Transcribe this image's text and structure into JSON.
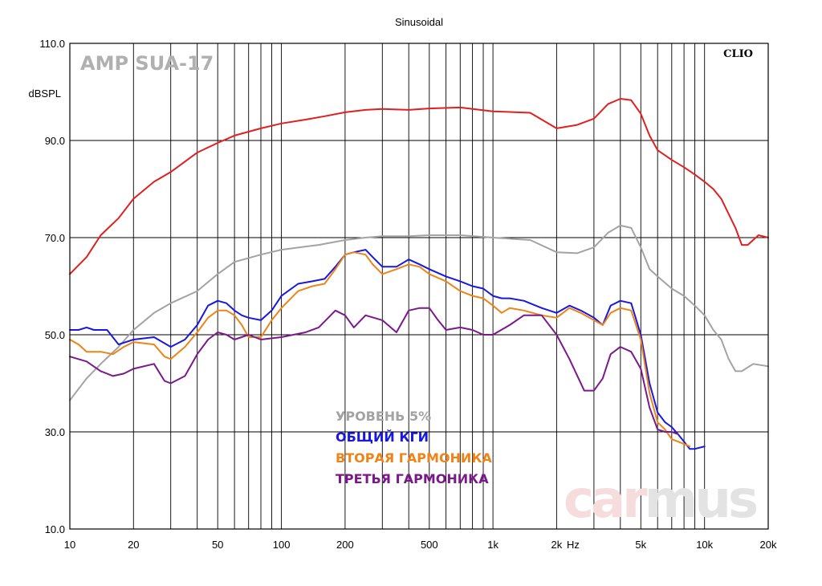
{
  "chart_data": {
    "type": "line",
    "title": "Sinusoidal",
    "ylabel": "dBSPL",
    "xlabel": "Hz",
    "x_scale": "log",
    "xlim": [
      10,
      20000
    ],
    "ylim": [
      10,
      110
    ],
    "y_ticks": [
      "110.0",
      "90.0",
      "70.0",
      "50.0",
      "30.0",
      "10.0"
    ],
    "x_ticks": [
      {
        "value": 10,
        "label": "10"
      },
      {
        "value": 20,
        "label": "20"
      },
      {
        "value": 50,
        "label": "50"
      },
      {
        "value": 100,
        "label": "100"
      },
      {
        "value": 200,
        "label": "200"
      },
      {
        "value": 500,
        "label": "500"
      },
      {
        "value": 1000,
        "label": "1k"
      },
      {
        "value": 2000,
        "label": "2k"
      },
      {
        "value": 5000,
        "label": "5k"
      },
      {
        "value": 10000,
        "label": "10k"
      },
      {
        "value": 20000,
        "label": "20k"
      }
    ],
    "grid": true,
    "annotations": {
      "device": "AMP SUA-17",
      "brand": "CLIO",
      "watermark_a": "car",
      "watermark_b": "mus"
    },
    "legend_position": "center-bottom",
    "series": [
      {
        "name": "",
        "color": "#e02020",
        "points": [
          [
            10,
            62.5
          ],
          [
            12,
            66
          ],
          [
            14,
            70.5
          ],
          [
            17,
            74
          ],
          [
            20,
            78
          ],
          [
            25,
            81.5
          ],
          [
            30,
            83.5
          ],
          [
            40,
            87.5
          ],
          [
            50,
            89.5
          ],
          [
            60,
            91
          ],
          [
            80,
            92.5
          ],
          [
            100,
            93.5
          ],
          [
            130,
            94.3
          ],
          [
            160,
            95
          ],
          [
            200,
            95.8
          ],
          [
            250,
            96.3
          ],
          [
            300,
            96.5
          ],
          [
            400,
            96.3
          ],
          [
            500,
            96.6
          ],
          [
            700,
            96.8
          ],
          [
            1000,
            96
          ],
          [
            1500,
            95.7
          ],
          [
            2000,
            92.5
          ],
          [
            2500,
            93.2
          ],
          [
            3000,
            94.5
          ],
          [
            3500,
            97.5
          ],
          [
            4000,
            98.6
          ],
          [
            4500,
            98.3
          ],
          [
            5000,
            95.5
          ],
          [
            5500,
            91
          ],
          [
            6000,
            88
          ],
          [
            7000,
            86
          ],
          [
            8000,
            84.5
          ],
          [
            9000,
            83
          ],
          [
            10000,
            81.5
          ],
          [
            11000,
            80
          ],
          [
            12000,
            78
          ],
          [
            14000,
            72
          ],
          [
            15000,
            68.5
          ],
          [
            16000,
            68.5
          ],
          [
            18000,
            70.5
          ],
          [
            20000,
            70
          ]
        ]
      },
      {
        "name": "УРОВЕНЬ 5%",
        "color": "#a3a3a3",
        "points": [
          [
            10,
            36.5
          ],
          [
            12,
            41
          ],
          [
            14,
            44
          ],
          [
            17,
            47.5
          ],
          [
            20,
            51
          ],
          [
            25,
            54.5
          ],
          [
            30,
            56.5
          ],
          [
            40,
            59
          ],
          [
            50,
            62.5
          ],
          [
            60,
            65
          ],
          [
            80,
            66.5
          ],
          [
            100,
            67.5
          ],
          [
            150,
            68.5
          ],
          [
            200,
            69.5
          ],
          [
            250,
            70
          ],
          [
            300,
            70.3
          ],
          [
            400,
            70.3
          ],
          [
            500,
            70.5
          ],
          [
            700,
            70.5
          ],
          [
            1000,
            70
          ],
          [
            1500,
            69.5
          ],
          [
            2000,
            67
          ],
          [
            2500,
            66.8
          ],
          [
            3000,
            68
          ],
          [
            3500,
            71
          ],
          [
            4000,
            72.5
          ],
          [
            4500,
            72
          ],
          [
            5000,
            68
          ],
          [
            5500,
            63.5
          ],
          [
            6000,
            62
          ],
          [
            7000,
            59.5
          ],
          [
            8000,
            58
          ],
          [
            9000,
            56
          ],
          [
            10000,
            54
          ],
          [
            11000,
            51
          ],
          [
            12000,
            49
          ],
          [
            13000,
            45
          ],
          [
            14000,
            42.5
          ],
          [
            15000,
            42.5
          ],
          [
            17000,
            44
          ],
          [
            20000,
            43.5
          ]
        ]
      },
      {
        "name": "ОБЩИЙ КГИ",
        "color": "#1818e0",
        "points": [
          [
            10,
            51
          ],
          [
            11,
            51
          ],
          [
            12,
            51.5
          ],
          [
            13,
            51
          ],
          [
            15,
            51
          ],
          [
            17,
            48
          ],
          [
            20,
            49
          ],
          [
            25,
            49.5
          ],
          [
            30,
            47.5
          ],
          [
            35,
            49
          ],
          [
            40,
            52
          ],
          [
            45,
            56
          ],
          [
            50,
            57
          ],
          [
            55,
            56.5
          ],
          [
            60,
            55
          ],
          [
            65,
            54
          ],
          [
            70,
            53.5
          ],
          [
            80,
            53
          ],
          [
            90,
            55
          ],
          [
            100,
            58
          ],
          [
            120,
            60.5
          ],
          [
            140,
            61
          ],
          [
            160,
            61.5
          ],
          [
            180,
            64
          ],
          [
            200,
            66.5
          ],
          [
            220,
            67
          ],
          [
            250,
            67.5
          ],
          [
            270,
            66
          ],
          [
            300,
            64
          ],
          [
            350,
            64
          ],
          [
            400,
            65.5
          ],
          [
            450,
            64.5
          ],
          [
            500,
            63.5
          ],
          [
            600,
            62
          ],
          [
            700,
            61
          ],
          [
            800,
            60
          ],
          [
            900,
            59.5
          ],
          [
            1000,
            58
          ],
          [
            1100,
            57.5
          ],
          [
            1200,
            57.5
          ],
          [
            1400,
            57
          ],
          [
            1700,
            55.5
          ],
          [
            2000,
            54.5
          ],
          [
            2300,
            56
          ],
          [
            2600,
            55
          ],
          [
            3000,
            53.5
          ],
          [
            3300,
            52
          ],
          [
            3600,
            56
          ],
          [
            4000,
            57
          ],
          [
            4500,
            56.5
          ],
          [
            5000,
            50
          ],
          [
            5500,
            40
          ],
          [
            6000,
            34
          ],
          [
            6500,
            32
          ],
          [
            7000,
            31
          ],
          [
            7500,
            29.5
          ],
          [
            8000,
            28
          ],
          [
            8500,
            26.5
          ],
          [
            9000,
            26.5
          ],
          [
            10000,
            27
          ]
        ]
      },
      {
        "name": "ВТОРАЯ ГАРМОНИКА",
        "color": "#ee8418",
        "points": [
          [
            10,
            49
          ],
          [
            11,
            48
          ],
          [
            12,
            46.5
          ],
          [
            14,
            46.5
          ],
          [
            16,
            46
          ],
          [
            18,
            47.5
          ],
          [
            20,
            48.5
          ],
          [
            25,
            48
          ],
          [
            28,
            45.5
          ],
          [
            30,
            45
          ],
          [
            35,
            47.5
          ],
          [
            40,
            50.5
          ],
          [
            45,
            53.5
          ],
          [
            50,
            55
          ],
          [
            55,
            55
          ],
          [
            60,
            54
          ],
          [
            65,
            52
          ],
          [
            70,
            49.5
          ],
          [
            80,
            49.5
          ],
          [
            90,
            53
          ],
          [
            100,
            55.5
          ],
          [
            120,
            59
          ],
          [
            140,
            60
          ],
          [
            160,
            60.5
          ],
          [
            180,
            63.5
          ],
          [
            200,
            66.5
          ],
          [
            220,
            67
          ],
          [
            250,
            66.5
          ],
          [
            270,
            64.5
          ],
          [
            300,
            62.5
          ],
          [
            350,
            63.5
          ],
          [
            400,
            64.5
          ],
          [
            450,
            64
          ],
          [
            500,
            62.5
          ],
          [
            600,
            61
          ],
          [
            700,
            59
          ],
          [
            800,
            58
          ],
          [
            900,
            57.5
          ],
          [
            1000,
            56
          ],
          [
            1100,
            54.5
          ],
          [
            1200,
            55.5
          ],
          [
            1400,
            55
          ],
          [
            1700,
            54
          ],
          [
            2000,
            53.5
          ],
          [
            2300,
            55.5
          ],
          [
            2600,
            54.5
          ],
          [
            3000,
            53
          ],
          [
            3300,
            52
          ],
          [
            3600,
            54.5
          ],
          [
            4000,
            55.5
          ],
          [
            4500,
            55
          ],
          [
            5000,
            49
          ],
          [
            5500,
            38
          ],
          [
            6000,
            32
          ],
          [
            6500,
            30.5
          ],
          [
            7000,
            28.5
          ],
          [
            8000,
            27.5
          ],
          [
            8500,
            27
          ]
        ]
      },
      {
        "name": "ТРЕТЬЯ ГАРМОНИКА",
        "color": "#7a1a8a",
        "points": [
          [
            10,
            45.5
          ],
          [
            12,
            44.5
          ],
          [
            14,
            42.5
          ],
          [
            16,
            41.5
          ],
          [
            18,
            42
          ],
          [
            20,
            43
          ],
          [
            25,
            44
          ],
          [
            28,
            40.5
          ],
          [
            30,
            40
          ],
          [
            35,
            41.5
          ],
          [
            40,
            46
          ],
          [
            45,
            49
          ],
          [
            50,
            50.5
          ],
          [
            55,
            50
          ],
          [
            60,
            49
          ],
          [
            70,
            50
          ],
          [
            80,
            49
          ],
          [
            100,
            49.5
          ],
          [
            130,
            50.5
          ],
          [
            150,
            51.5
          ],
          [
            180,
            55
          ],
          [
            200,
            54
          ],
          [
            220,
            51.5
          ],
          [
            250,
            54
          ],
          [
            300,
            53
          ],
          [
            350,
            50.5
          ],
          [
            400,
            55
          ],
          [
            450,
            55.5
          ],
          [
            500,
            55.5
          ],
          [
            550,
            53
          ],
          [
            600,
            51
          ],
          [
            700,
            51.5
          ],
          [
            800,
            51
          ],
          [
            900,
            50
          ],
          [
            1000,
            50
          ],
          [
            1200,
            52
          ],
          [
            1400,
            54
          ],
          [
            1700,
            54
          ],
          [
            2000,
            50
          ],
          [
            2300,
            45
          ],
          [
            2700,
            38.5
          ],
          [
            3000,
            38.5
          ],
          [
            3300,
            41
          ],
          [
            3600,
            46
          ],
          [
            4000,
            47.5
          ],
          [
            4500,
            46.5
          ],
          [
            5000,
            43
          ],
          [
            5500,
            35
          ],
          [
            6000,
            30.5
          ],
          [
            6500,
            30
          ],
          [
            7000,
            30
          ],
          [
            7500,
            29.5
          ]
        ]
      }
    ]
  }
}
